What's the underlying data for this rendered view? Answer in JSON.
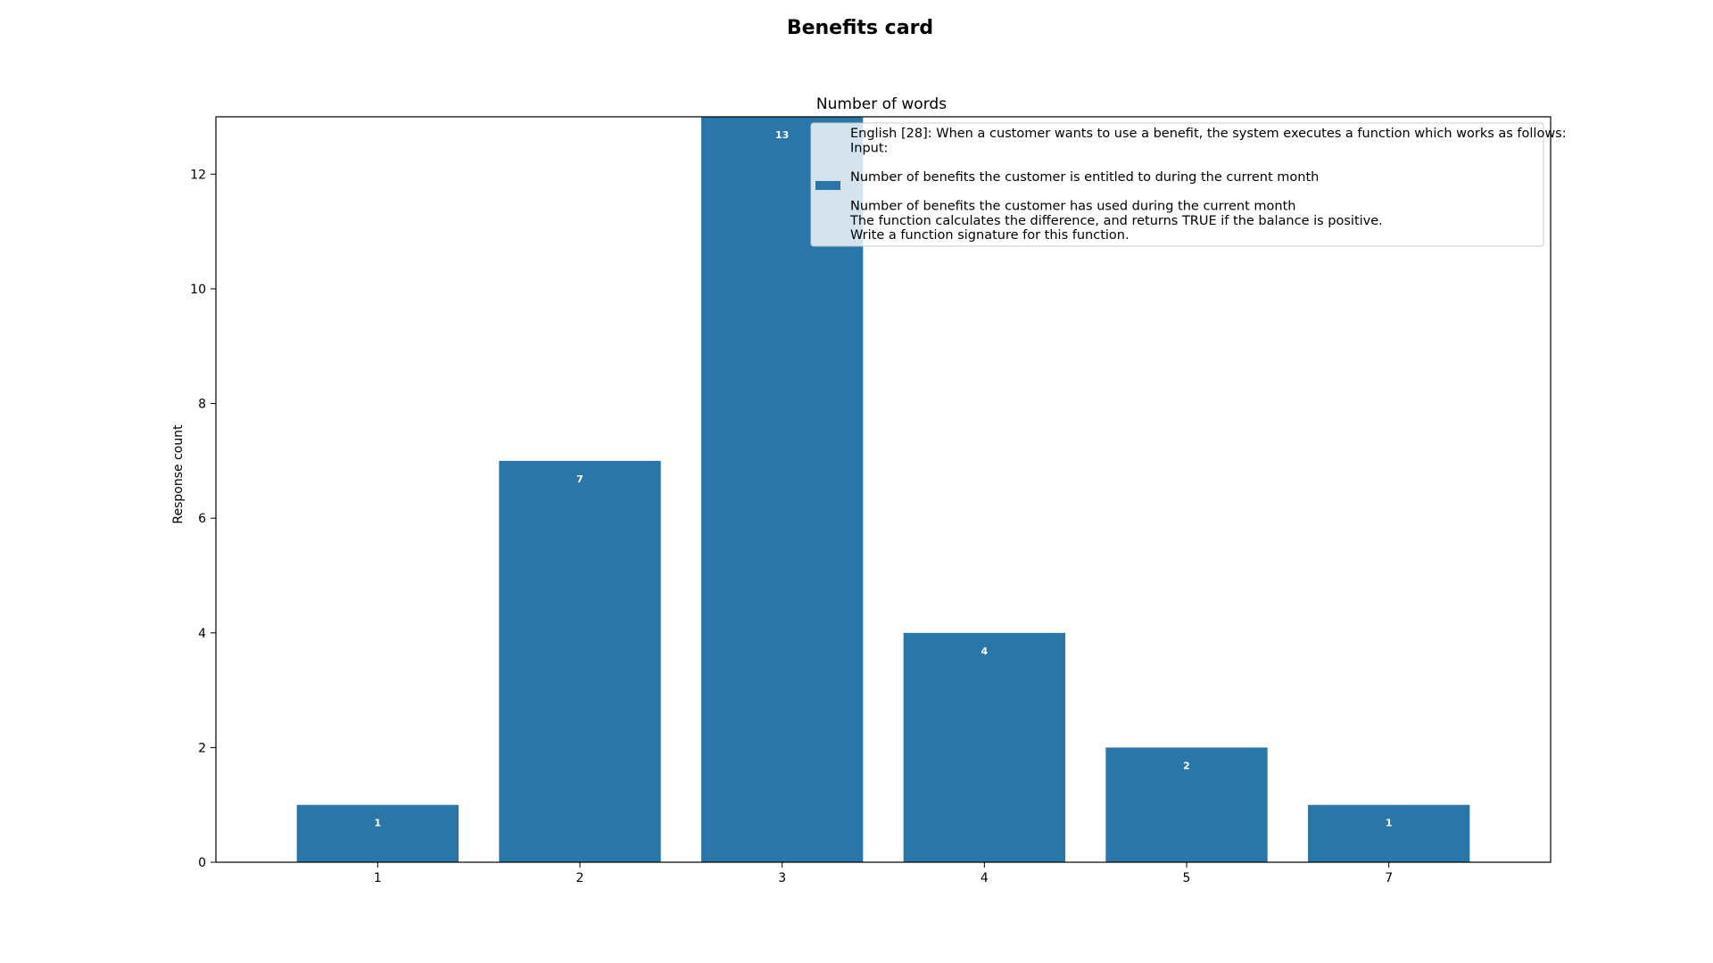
{
  "chart_data": {
    "type": "bar",
    "suptitle": "Benefits card",
    "title": "Number of words",
    "xlabel": "",
    "ylabel": "Response count",
    "categories": [
      "1",
      "2",
      "3",
      "4",
      "5",
      "7"
    ],
    "values": [
      1,
      7,
      13,
      4,
      2,
      1
    ],
    "data_labels": [
      "1",
      "7",
      "13",
      "4",
      "2",
      "1"
    ],
    "ylim": [
      0,
      13
    ],
    "yticks": [
      0,
      2,
      4,
      6,
      8,
      10,
      12
    ],
    "ytick_labels": [
      "0",
      "2",
      "4",
      "6",
      "8",
      "10",
      "12"
    ],
    "grid": false,
    "legend_position": "upper-right",
    "series": [
      {
        "name": "English [28]: When a customer wants to use a benefit, the system executes a function which works as follows:\nInput:\n\n Number of benefits the customer is entitled to during the current month\n\n Number of benefits the customer has used during the current month\nThe function calculates the difference, and returns TRUE if the balance is positive.\nWrite a function signature for this function.",
        "values": [
          1,
          7,
          13,
          4,
          2,
          1
        ],
        "color": "#2a76a8"
      }
    ]
  }
}
